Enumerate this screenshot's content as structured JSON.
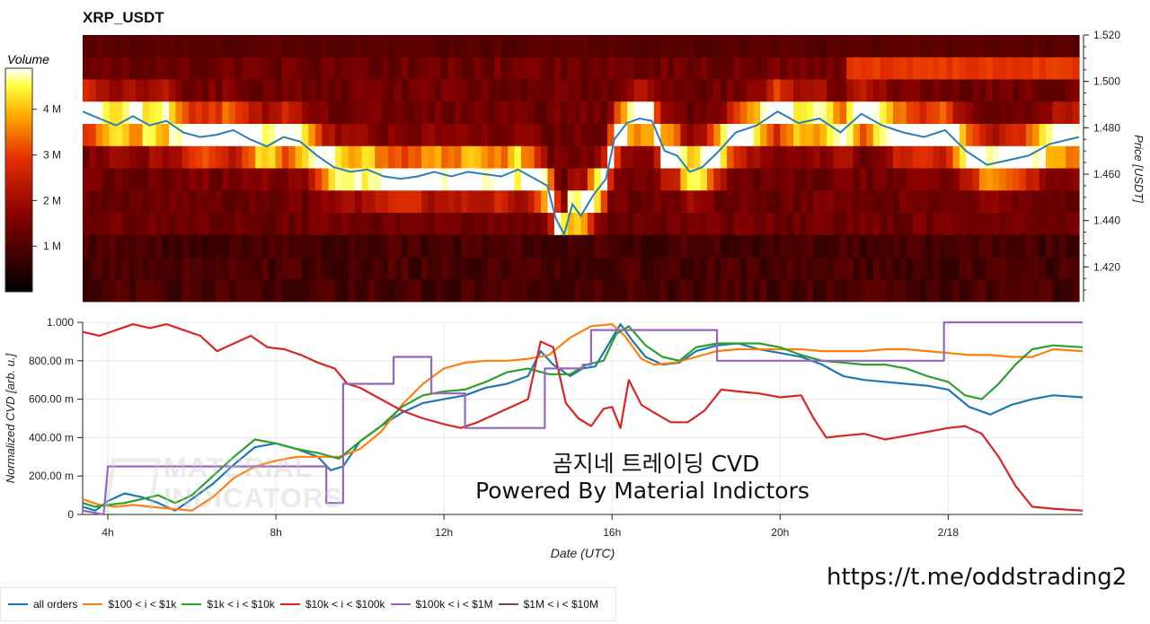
{
  "title": "XRP_USDT",
  "colors": {
    "all_orders": "#1f77b4",
    "s100_1k": "#ff7f0e",
    "s1k_10k": "#2ca02c",
    "s10k_100k": "#d62728",
    "s100k_1M": "#9467bd",
    "s1M_10M": "#6b4a4a",
    "price_line": "#2b7fb8"
  },
  "watermark": {
    "title": "곰지네 트레이딩 CVD",
    "subtitle": "Powered By Material Indictors",
    "logo_line1": "MATERIAL",
    "logo_line2": "INDICATORS"
  },
  "url": "https://t.me/oddstrading2",
  "chart_data": [
    {
      "type": "heatmap",
      "colorbar": {
        "label": "Volume",
        "ticks": [
          "1 M",
          "2 M",
          "3 M",
          "4 M"
        ],
        "tick_values": [
          1,
          2,
          3,
          4
        ],
        "range": [
          0,
          4.9
        ]
      },
      "ylabel": "Price [USDT]",
      "ylim": [
        1.405,
        1.52
      ],
      "yticks": [
        "1.420",
        "1.440",
        "1.460",
        "1.480",
        "1.500",
        "1.520"
      ],
      "ytick_values": [
        1.42,
        1.44,
        1.46,
        1.48,
        1.5,
        1.52
      ],
      "xlim": [
        3.4,
        27.2
      ],
      "price_series": {
        "x": [
          3.4,
          3.8,
          4.2,
          4.6,
          5.0,
          5.4,
          5.8,
          6.2,
          6.6,
          7.0,
          7.4,
          7.8,
          8.2,
          8.6,
          9.0,
          9.4,
          9.8,
          10.2,
          10.6,
          11.0,
          11.4,
          11.8,
          12.2,
          12.6,
          13.0,
          13.4,
          13.8,
          14.2,
          14.5,
          14.7,
          14.9,
          15.1,
          15.3,
          15.6,
          15.9,
          16.1,
          16.4,
          16.7,
          17.0,
          17.3,
          17.6,
          17.9,
          18.2,
          18.6,
          19.0,
          19.5,
          20.0,
          20.5,
          21.0,
          21.5,
          22.0,
          22.5,
          23.0,
          23.5,
          24.0,
          24.5,
          25.0,
          25.5,
          26.0,
          26.5,
          27.2
        ],
        "y": [
          1.487,
          1.484,
          1.481,
          1.485,
          1.481,
          1.483,
          1.478,
          1.476,
          1.477,
          1.479,
          1.475,
          1.472,
          1.476,
          1.474,
          1.468,
          1.463,
          1.461,
          1.462,
          1.459,
          1.458,
          1.459,
          1.461,
          1.459,
          1.461,
          1.46,
          1.459,
          1.462,
          1.458,
          1.455,
          1.441,
          1.434,
          1.447,
          1.442,
          1.451,
          1.458,
          1.475,
          1.482,
          1.484,
          1.483,
          1.47,
          1.468,
          1.461,
          1.463,
          1.47,
          1.478,
          1.481,
          1.487,
          1.482,
          1.484,
          1.478,
          1.486,
          1.481,
          1.478,
          1.476,
          1.479,
          1.47,
          1.464,
          1.466,
          1.468,
          1.473,
          1.476
        ]
      }
    },
    {
      "type": "line",
      "xlabel": "Date (UTC)",
      "ylabel": "Normalized CVD [arb. u.]",
      "xlim": [
        3.4,
        27.2
      ],
      "ylim": [
        0,
        1000
      ],
      "xticks": [
        "4h",
        "8h",
        "12h",
        "16h",
        "20h",
        "2/18"
      ],
      "xtick_values": [
        4,
        8,
        12,
        16,
        20,
        24
      ],
      "yticks": [
        "0",
        "200.00 m",
        "400.00 m",
        "600.00 m",
        "800.00 m",
        "1.000"
      ],
      "ytick_values": [
        0,
        200,
        400,
        600,
        800,
        1000
      ],
      "grid": true,
      "series": [
        {
          "name": "all orders",
          "color_key": "all_orders",
          "x": [
            3.4,
            3.7,
            4.0,
            4.4,
            4.8,
            5.2,
            5.6,
            6.0,
            6.5,
            7.0,
            7.5,
            8.0,
            8.5,
            9.0,
            9.3,
            9.6,
            10.0,
            10.5,
            11.0,
            11.5,
            12.0,
            12.5,
            13.0,
            13.5,
            14.0,
            14.3,
            14.6,
            15.0,
            15.3,
            15.6,
            15.9,
            16.2,
            16.5,
            16.8,
            17.2,
            17.6,
            18.0,
            18.5,
            19.0,
            19.5,
            20.0,
            20.5,
            21.0,
            21.5,
            22.0,
            22.5,
            23.0,
            23.5,
            24.0,
            24.5,
            25.0,
            25.5,
            26.0,
            26.5,
            27.2
          ],
          "y": [
            40,
            20,
            70,
            110,
            90,
            60,
            20,
            80,
            160,
            260,
            350,
            370,
            340,
            300,
            230,
            250,
            380,
            460,
            530,
            580,
            600,
            620,
            660,
            680,
            720,
            850,
            780,
            720,
            760,
            770,
            880,
            990,
            900,
            820,
            780,
            790,
            850,
            880,
            890,
            860,
            840,
            820,
            780,
            720,
            700,
            690,
            680,
            670,
            650,
            560,
            520,
            570,
            600,
            620,
            610
          ]
        },
        {
          "name": "$100 < i < $1k",
          "color_key": "s100_1k",
          "x": [
            3.4,
            3.8,
            4.2,
            4.6,
            5.0,
            5.5,
            6.0,
            6.5,
            7.0,
            7.5,
            8.0,
            8.5,
            9.0,
            9.5,
            10.0,
            10.5,
            11.0,
            11.5,
            12.0,
            12.5,
            13.0,
            13.5,
            14.0,
            14.5,
            15.0,
            15.5,
            16.0,
            16.3,
            16.7,
            17.0,
            17.5,
            18.0,
            18.5,
            19.0,
            19.5,
            20.0,
            20.5,
            21.0,
            21.5,
            22.0,
            22.5,
            23.0,
            23.5,
            24.0,
            24.5,
            25.0,
            25.5,
            26.0,
            26.5,
            27.2
          ],
          "y": [
            80,
            50,
            40,
            50,
            40,
            30,
            20,
            90,
            190,
            250,
            280,
            300,
            300,
            300,
            340,
            430,
            570,
            680,
            760,
            790,
            800,
            800,
            810,
            830,
            920,
            980,
            990,
            930,
            810,
            780,
            790,
            820,
            850,
            860,
            860,
            860,
            860,
            850,
            850,
            850,
            860,
            860,
            850,
            840,
            830,
            830,
            820,
            820,
            860,
            850
          ]
        },
        {
          "name": "$1k < i < $10k",
          "color_key": "s1k_10k",
          "x": [
            3.4,
            3.7,
            4.0,
            4.4,
            4.8,
            5.2,
            5.6,
            6.0,
            6.5,
            7.0,
            7.5,
            8.0,
            8.5,
            9.0,
            9.5,
            10.0,
            10.5,
            11.0,
            11.5,
            12.0,
            12.5,
            13.0,
            13.5,
            14.0,
            14.5,
            15.0,
            15.4,
            15.8,
            16.1,
            16.4,
            16.8,
            17.2,
            17.6,
            18.0,
            18.5,
            19.0,
            19.5,
            20.0,
            20.5,
            21.0,
            21.5,
            22.0,
            22.5,
            23.0,
            23.5,
            24.0,
            24.4,
            24.8,
            25.2,
            25.6,
            26.0,
            26.5,
            27.2
          ],
          "y": [
            60,
            40,
            50,
            60,
            80,
            100,
            60,
            100,
            200,
            300,
            390,
            370,
            340,
            320,
            290,
            380,
            460,
            560,
            620,
            640,
            650,
            690,
            740,
            760,
            730,
            730,
            780,
            800,
            940,
            980,
            880,
            820,
            800,
            870,
            890,
            890,
            890,
            870,
            830,
            800,
            790,
            780,
            780,
            760,
            720,
            690,
            620,
            600,
            680,
            780,
            860,
            880,
            870
          ]
        },
        {
          "name": "$10k < i < $100k",
          "color_key": "s10k_100k",
          "x": [
            3.4,
            3.8,
            4.2,
            4.6,
            5.0,
            5.4,
            5.8,
            6.2,
            6.6,
            7.0,
            7.4,
            7.8,
            8.2,
            8.6,
            9.0,
            9.4,
            9.7,
            10.0,
            10.5,
            11.0,
            11.5,
            12.0,
            12.4,
            12.8,
            13.2,
            13.6,
            14.0,
            14.3,
            14.6,
            14.9,
            15.2,
            15.5,
            15.8,
            16.0,
            16.2,
            16.4,
            16.7,
            17.0,
            17.4,
            17.8,
            18.2,
            18.6,
            19.0,
            19.5,
            20.0,
            20.5,
            20.8,
            21.1,
            21.5,
            22.0,
            22.5,
            23.0,
            23.5,
            24.0,
            24.4,
            24.8,
            25.2,
            25.6,
            26.0,
            26.5,
            27.2
          ],
          "y": [
            950,
            930,
            960,
            990,
            970,
            990,
            960,
            930,
            850,
            890,
            930,
            870,
            860,
            830,
            790,
            760,
            680,
            660,
            600,
            540,
            500,
            470,
            450,
            480,
            520,
            560,
            600,
            900,
            870,
            580,
            500,
            460,
            550,
            560,
            450,
            700,
            570,
            530,
            480,
            480,
            540,
            650,
            640,
            630,
            610,
            620,
            500,
            400,
            410,
            420,
            390,
            410,
            430,
            450,
            460,
            420,
            300,
            150,
            40,
            30,
            20
          ]
        },
        {
          "name": "$100k < i < $1M",
          "color_key": "s100k_1M",
          "x": [
            3.4,
            3.9,
            4.0,
            9.2,
            9.2,
            9.6,
            9.6,
            10.8,
            10.8,
            11.7,
            11.7,
            12.5,
            12.5,
            14.4,
            14.4,
            15.3,
            15.3,
            15.5,
            15.5,
            18.5,
            18.5,
            23.9,
            23.9,
            27.2
          ],
          "y": [
            20,
            0,
            250,
            250,
            60,
            60,
            680,
            680,
            820,
            820,
            630,
            630,
            450,
            450,
            760,
            760,
            780,
            780,
            960,
            960,
            800,
            800,
            1000,
            1000
          ]
        },
        {
          "name": "$1M < i < $10M",
          "color_key": "s1M_10M",
          "x": [],
          "y": []
        }
      ]
    }
  ]
}
